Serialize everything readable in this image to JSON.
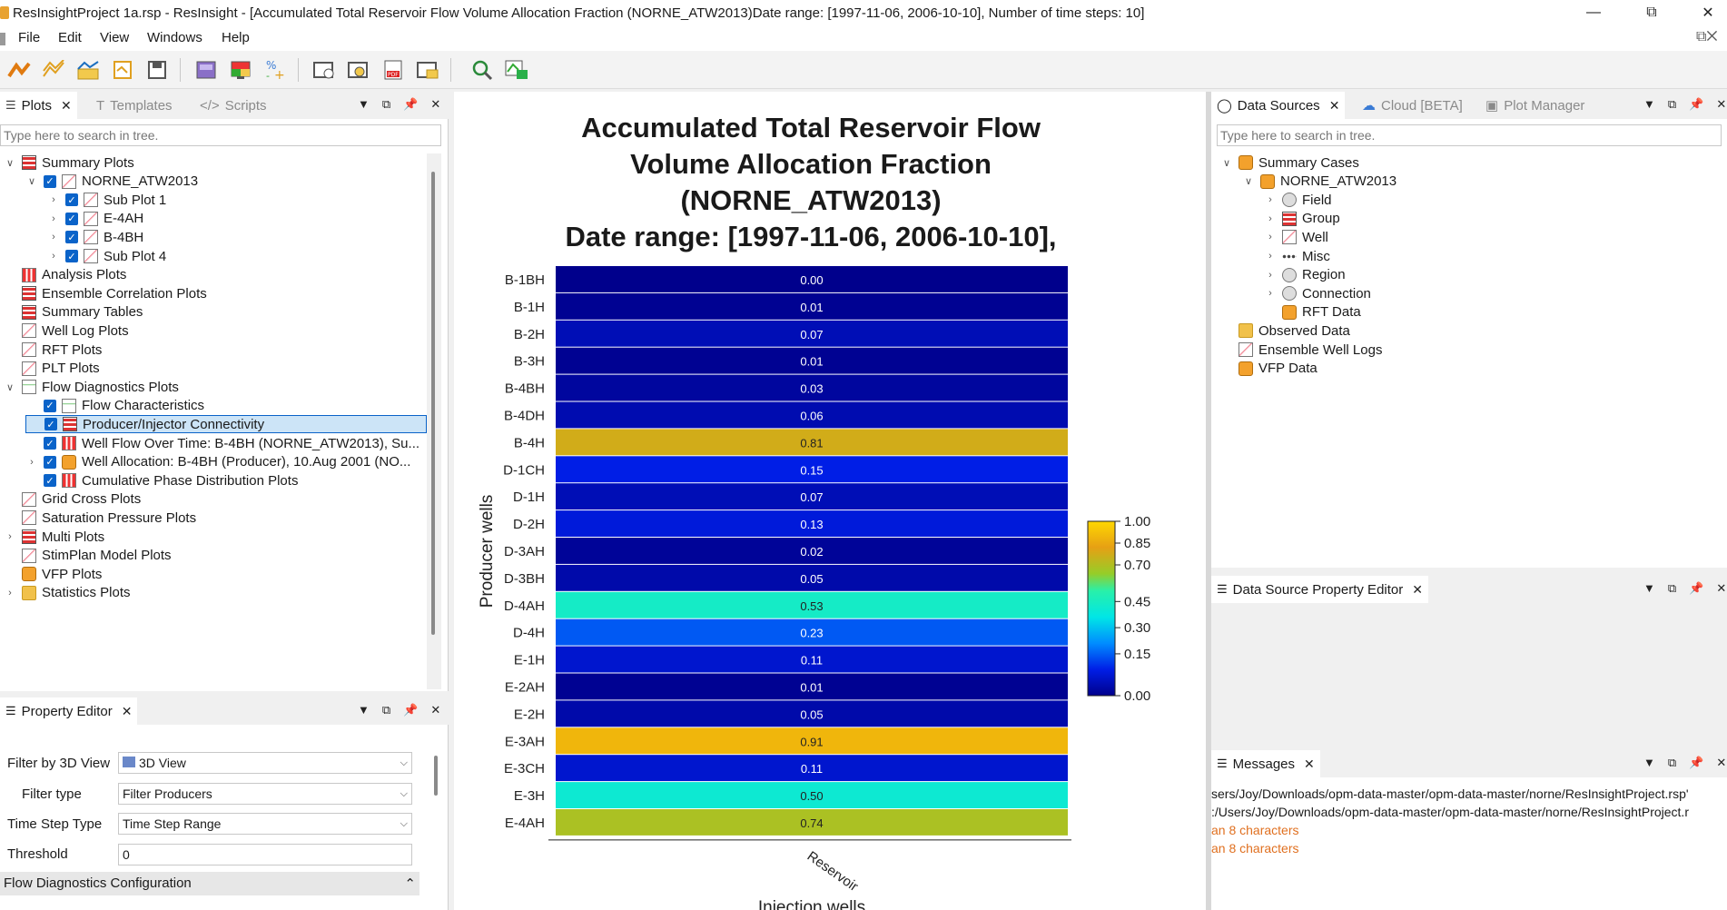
{
  "window": {
    "title": "ResInsightProject 1a.rsp - ResInsight - [Accumulated Total Reservoir Flow Volume Allocation Fraction (NORNE_ATW2013)Date range: [1997-11-06, 2006-10-10], Number of time steps: 10]",
    "minimize_icon": "minimize-icon",
    "restore_icon": "restore-icon",
    "close_icon": "close-icon"
  },
  "menu": [
    "File",
    "Edit",
    "View",
    "Windows",
    "Help"
  ],
  "left_panel": {
    "tabs": [
      {
        "label": "Plots",
        "active": true
      },
      {
        "label": "Templates",
        "active": false
      },
      {
        "label": "Scripts",
        "active": false
      }
    ],
    "search_placeholder": "Type here to search in tree.",
    "tree": [
      {
        "label": "Summary Plots",
        "level": 0,
        "expanded": true,
        "icon": "grid"
      },
      {
        "label": "NORNE_ATW2013",
        "level": 1,
        "expanded": true,
        "checkbox": true,
        "icon": "chart"
      },
      {
        "label": "Sub Plot 1",
        "level": 2,
        "expander": true,
        "checkbox": true,
        "icon": "chart"
      },
      {
        "label": "E-4AH",
        "level": 2,
        "expander": true,
        "checkbox": true,
        "icon": "chart"
      },
      {
        "label": "B-4BH",
        "level": 2,
        "expander": true,
        "checkbox": true,
        "icon": "chart"
      },
      {
        "label": "Sub Plot 4",
        "level": 2,
        "expander": true,
        "checkbox": true,
        "icon": "chart"
      },
      {
        "label": "Analysis Plots",
        "level": 0,
        "icon": "bars"
      },
      {
        "label": "Ensemble Correlation Plots",
        "level": 0,
        "icon": "grid"
      },
      {
        "label": "Summary Tables",
        "level": 0,
        "icon": "grid"
      },
      {
        "label": "Well Log Plots",
        "level": 0,
        "icon": "chart"
      },
      {
        "label": "RFT Plots",
        "level": 0,
        "icon": "chart"
      },
      {
        "label": "PLT Plots",
        "level": 0,
        "icon": "chart"
      },
      {
        "label": "Flow Diagnostics Plots",
        "level": 0,
        "expanded": true,
        "icon": "flow"
      },
      {
        "label": "Flow Characteristics",
        "level": 1,
        "checkbox": true,
        "icon": "flow"
      },
      {
        "label": "Producer/Injector Connectivity",
        "level": 1,
        "checkbox": true,
        "icon": "grid",
        "selected": true
      },
      {
        "label": "Well Flow Over Time: B-4BH (NORNE_ATW2013), Su...",
        "level": 1,
        "checkbox": true,
        "icon": "bars"
      },
      {
        "label": "Well Allocation: B-4BH (Producer), 10.Aug 2001 (NO...",
        "level": 1,
        "expander": true,
        "checkbox": true,
        "icon": "oil"
      },
      {
        "label": "Cumulative Phase Distribution Plots",
        "level": 1,
        "checkbox": true,
        "icon": "bars"
      },
      {
        "label": "Grid Cross Plots",
        "level": 0,
        "icon": "chart"
      },
      {
        "label": "Saturation Pressure Plots",
        "level": 0,
        "icon": "chart"
      },
      {
        "label": "Multi Plots",
        "level": 0,
        "expander": true,
        "icon": "grid"
      },
      {
        "label": "StimPlan Model Plots",
        "level": 0,
        "icon": "chart"
      },
      {
        "label": "VFP Plots",
        "level": 0,
        "icon": "oil"
      },
      {
        "label": "Statistics Plots",
        "level": 0,
        "expander": true,
        "icon": "folder"
      }
    ]
  },
  "property_editor": {
    "title": "Property Editor",
    "fields": [
      {
        "label": "Filter by 3D View",
        "value": "3D View",
        "type": "combo"
      },
      {
        "label": "Filter type",
        "value": "Filter Producers",
        "type": "combo"
      },
      {
        "label": "Time Step Type",
        "value": "Time Step Range",
        "type": "combo"
      },
      {
        "label": "Threshold",
        "value": "0",
        "type": "text"
      }
    ],
    "section": "Flow Diagnostics Configuration"
  },
  "chart_data": {
    "type": "heatmap",
    "title_lines": [
      "Accumulated Total Reservoir Flow",
      "Volume Allocation Fraction",
      "(NORNE_ATW2013)",
      "Date range: [1997-11-06, 2006-10-10],"
    ],
    "ylabel": "Producer wells",
    "xlabel": "Injection wells",
    "x_categories": [
      "Reservoir"
    ],
    "y_categories": [
      "B-1BH",
      "B-1H",
      "B-2H",
      "B-3H",
      "B-4BH",
      "B-4DH",
      "B-4H",
      "D-1CH",
      "D-1H",
      "D-2H",
      "D-3AH",
      "D-3BH",
      "D-4AH",
      "D-4H",
      "E-1H",
      "E-2AH",
      "E-2H",
      "E-3AH",
      "E-3CH",
      "E-3H",
      "E-4AH"
    ],
    "values": [
      0.0,
      0.01,
      0.07,
      0.01,
      0.03,
      0.06,
      0.81,
      0.15,
      0.07,
      0.13,
      0.02,
      0.05,
      0.53,
      0.23,
      0.11,
      0.01,
      0.05,
      0.91,
      0.11,
      0.5,
      0.74
    ],
    "value_labels": [
      "0.00",
      "0.01",
      "0.07",
      "0.01",
      "0.03",
      "0.06",
      "0.81",
      "0.15",
      "0.07",
      "0.13",
      "0.02",
      "0.05",
      "0.53",
      "0.23",
      "0.11",
      "0.01",
      "0.05",
      "0.91",
      "0.11",
      "0.50",
      "0.74"
    ],
    "colorbar": {
      "ticks": [
        "1.00",
        "0.85",
        "0.70",
        "0.45",
        "0.30",
        "0.15",
        "0.00"
      ],
      "range": [
        0,
        1
      ]
    }
  },
  "right_panel": {
    "tabs": [
      {
        "label": "Data Sources",
        "active": true
      },
      {
        "label": "Cloud [BETA]",
        "active": false
      },
      {
        "label": "Plot Manager",
        "active": false
      }
    ],
    "search_placeholder": "Type here to search in tree.",
    "tree": [
      {
        "label": "Summary Cases",
        "level": 0,
        "expanded": true,
        "icon": "oil"
      },
      {
        "label": "NORNE_ATW2013",
        "level": 1,
        "expanded": true,
        "icon": "oil"
      },
      {
        "label": "Field",
        "level": 2,
        "expander": true,
        "icon": "gear"
      },
      {
        "label": "Group",
        "level": 2,
        "expander": true,
        "icon": "grid"
      },
      {
        "label": "Well",
        "level": 2,
        "expander": true,
        "icon": "chart"
      },
      {
        "label": "Misc",
        "level": 2,
        "expander": true,
        "icon": "dots"
      },
      {
        "label": "Region",
        "level": 2,
        "expander": true,
        "icon": "gear"
      },
      {
        "label": "Connection",
        "level": 2,
        "expander": true,
        "icon": "gear"
      },
      {
        "label": "RFT Data",
        "level": 2,
        "icon": "oil"
      },
      {
        "label": "Observed Data",
        "level": 0,
        "icon": "folder"
      },
      {
        "label": "Ensemble Well Logs",
        "level": 0,
        "icon": "chart"
      },
      {
        "label": "VFP Data",
        "level": 0,
        "icon": "oil"
      }
    ],
    "property_editor_title": "Data Source Property Editor",
    "messages_title": "Messages",
    "messages": [
      {
        "text": "sers/Joy/Downloads/opm-data-master/opm-data-master/norne/ResInsightProject.rsp'",
        "color": "#1a1a1a"
      },
      {
        "text": ":/Users/Joy/Downloads/opm-data-master/opm-data-master/norne/ResInsightProject.r",
        "color": "#1a1a1a"
      },
      {
        "text": "an 8 characters",
        "color": "#e07020"
      },
      {
        "text": "an 8 characters",
        "color": "#e07020"
      }
    ]
  }
}
